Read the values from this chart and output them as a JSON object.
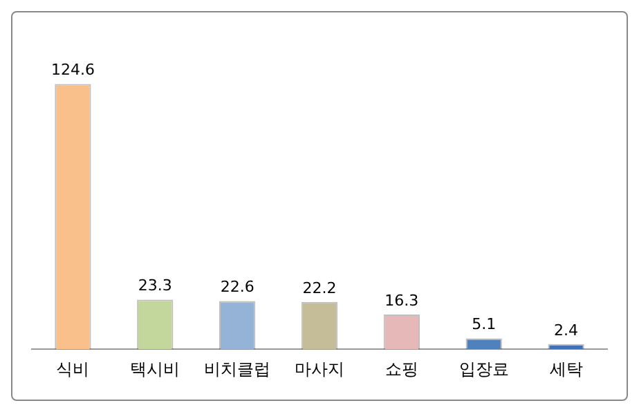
{
  "chart_data": {
    "type": "bar",
    "categories": [
      "식비",
      "택시비",
      "비치클럽",
      "마사지",
      "쇼핑",
      "입장료",
      "세탁"
    ],
    "values": [
      124.6,
      23.3,
      22.6,
      22.2,
      16.3,
      5.1,
      2.4
    ],
    "colors": [
      "#f9c08c",
      "#c3d69b",
      "#95b3d7",
      "#c4bd97",
      "#e6b9b8",
      "#4f81bd",
      "#3f72b8"
    ],
    "data_labels": true,
    "grid": false,
    "legend": false
  }
}
